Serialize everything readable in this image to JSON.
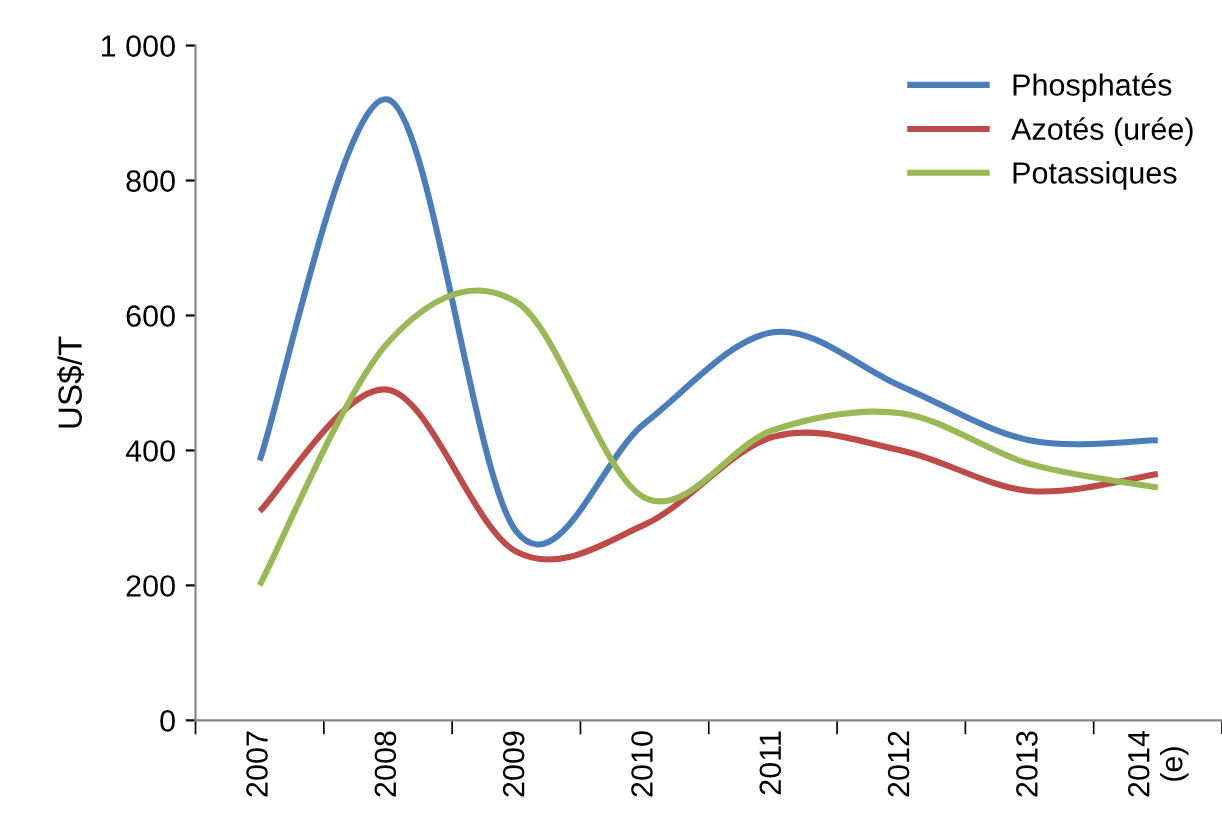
{
  "chart_data": {
    "type": "line",
    "ylabel": "US$/T",
    "categories": [
      "2007",
      "2008",
      "2009",
      "2010",
      "2011",
      "2012",
      "2013",
      "2014\n(e)"
    ],
    "series": [
      {
        "name": "Phosphatés",
        "color": "#4a7ebb",
        "values": [
          385,
          920,
          280,
          440,
          575,
          495,
          415,
          415
        ]
      },
      {
        "name": "Azotés (urée)",
        "color": "#be4b48",
        "values": [
          310,
          490,
          250,
          290,
          420,
          400,
          340,
          365
        ]
      },
      {
        "name": "Potassiques",
        "color": "#98b954",
        "values": [
          200,
          560,
          620,
          330,
          430,
          455,
          380,
          345
        ]
      }
    ],
    "ylim": [
      0,
      1000
    ],
    "yticks": [
      0,
      200,
      400,
      600,
      800,
      {
        "value": 1000,
        "label": "1 000"
      }
    ],
    "grid": false,
    "legend": "top right",
    "marker": "none",
    "line_style": "solid"
  }
}
